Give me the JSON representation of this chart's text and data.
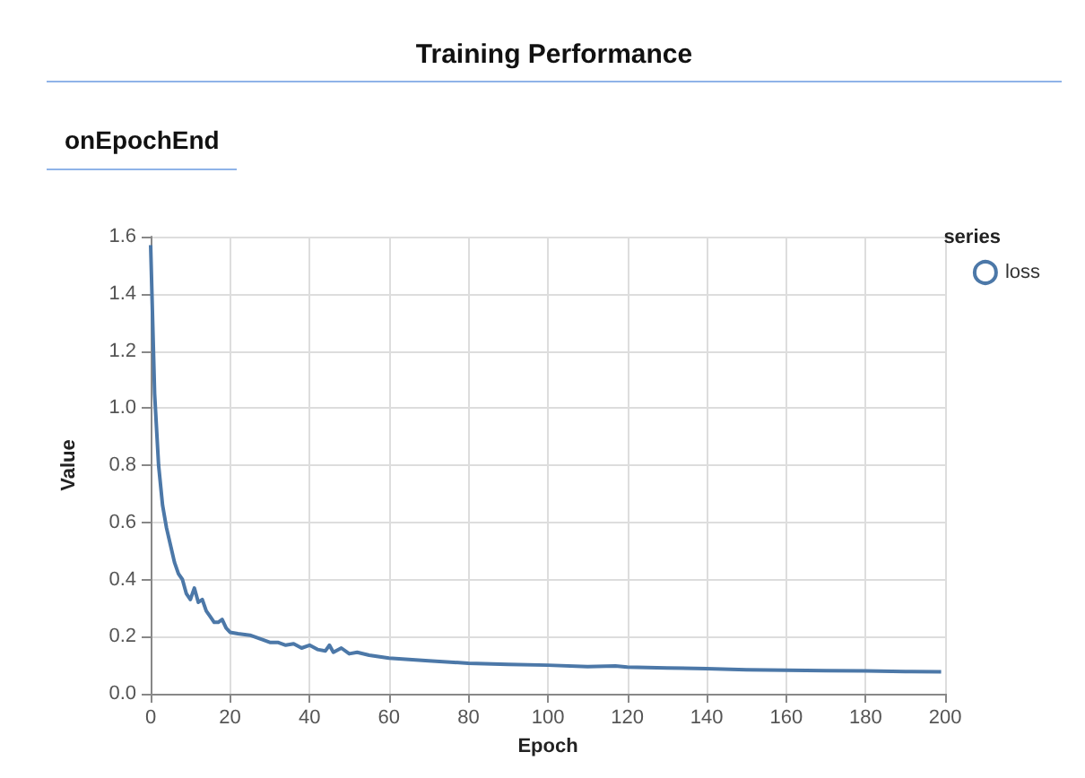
{
  "chart_data": {
    "type": "line",
    "title": "Training Performance",
    "subtitle": "onEpochEnd",
    "xlabel": "Epoch",
    "ylabel": "Value",
    "legend_title": "series",
    "legend": "top right",
    "grid": true,
    "xlim": [
      0,
      200
    ],
    "xticks": [
      0,
      20,
      40,
      60,
      80,
      100,
      120,
      140,
      160,
      180,
      200
    ],
    "ylim": [
      0,
      1.6
    ],
    "yticks": [
      {
        "value": 0,
        "label": "0.0"
      },
      0.2,
      0.4,
      0.6,
      0.8,
      {
        "value": 1,
        "label": "1.0"
      },
      1.2,
      1.4,
      1.6
    ],
    "series": [
      {
        "name": "loss",
        "color": "#4c78a8",
        "x": [
          0,
          1,
          2,
          3,
          4,
          5,
          6,
          7,
          8,
          9,
          10,
          11,
          12,
          13,
          14,
          15,
          16,
          17,
          18,
          19,
          20,
          22,
          25,
          28,
          30,
          32,
          34,
          36,
          38,
          40,
          42,
          44,
          45,
          46,
          48,
          50,
          52,
          55,
          60,
          65,
          70,
          80,
          90,
          100,
          110,
          117,
          120,
          130,
          140,
          150,
          160,
          170,
          180,
          190,
          199
        ],
        "values": [
          1.57,
          1.05,
          0.8,
          0.66,
          0.58,
          0.52,
          0.46,
          0.42,
          0.4,
          0.35,
          0.33,
          0.37,
          0.32,
          0.33,
          0.29,
          0.27,
          0.25,
          0.25,
          0.26,
          0.23,
          0.215,
          0.21,
          0.205,
          0.19,
          0.18,
          0.18,
          0.17,
          0.175,
          0.16,
          0.17,
          0.155,
          0.15,
          0.17,
          0.145,
          0.16,
          0.14,
          0.145,
          0.135,
          0.125,
          0.12,
          0.115,
          0.107,
          0.103,
          0.1,
          0.095,
          0.097,
          0.093,
          0.09,
          0.088,
          0.084,
          0.082,
          0.081,
          0.08,
          0.078,
          0.077
        ]
      }
    ]
  }
}
